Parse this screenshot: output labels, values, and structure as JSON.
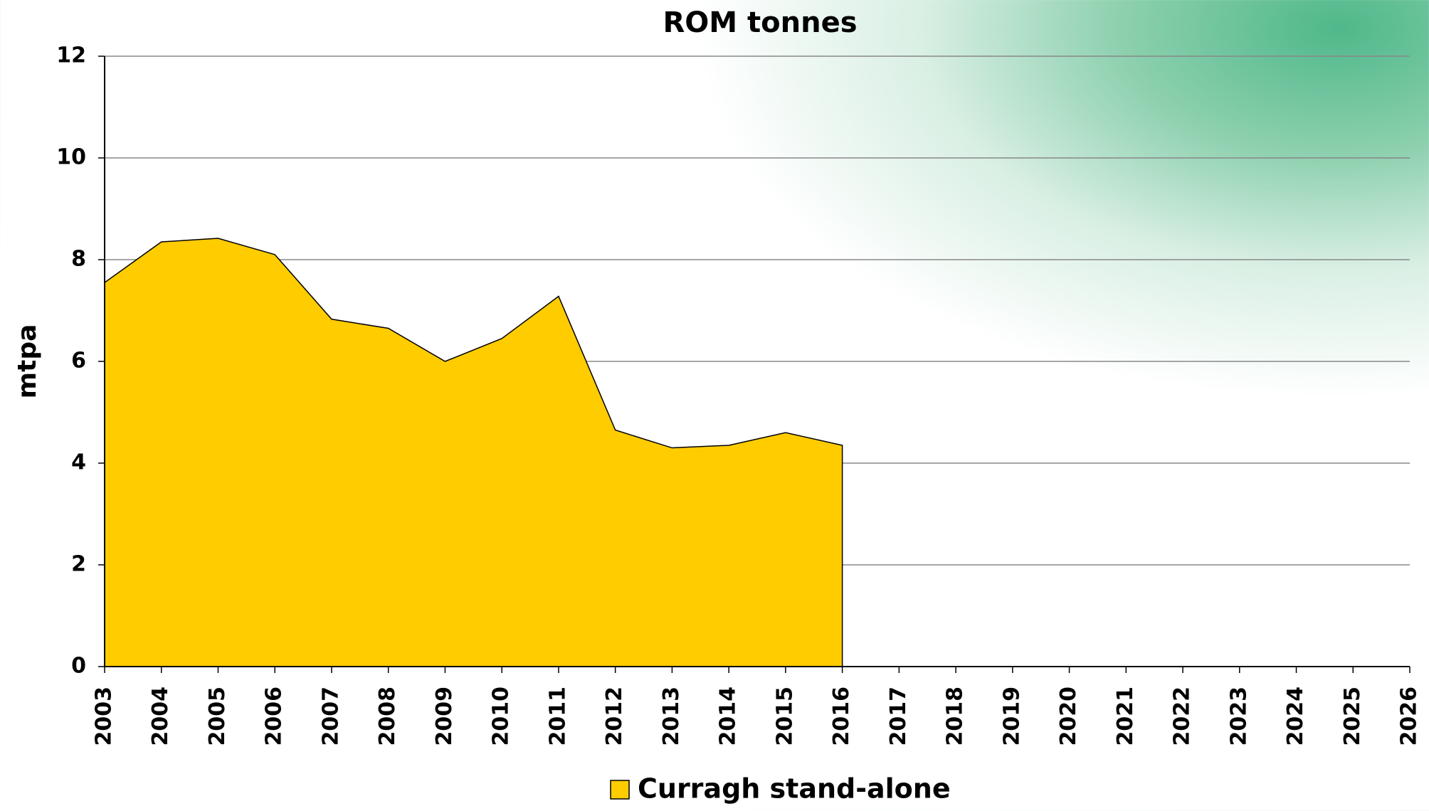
{
  "chart_data": {
    "type": "area",
    "title": "ROM tonnes",
    "y_label": "mtpa",
    "x": [
      2003,
      2004,
      2005,
      2006,
      2007,
      2008,
      2009,
      2010,
      2011,
      2012,
      2013,
      2014,
      2015,
      2016,
      2017,
      2018,
      2019,
      2020,
      2021,
      2022,
      2023,
      2024,
      2025,
      2026
    ],
    "xlim": [
      2003,
      2026
    ],
    "xticks": [
      2003,
      2004,
      2005,
      2006,
      2007,
      2008,
      2009,
      2010,
      2011,
      2012,
      2013,
      2014,
      2015,
      2016,
      2017,
      2018,
      2019,
      2020,
      2021,
      2022,
      2023,
      2024,
      2025,
      2026
    ],
    "ylim": [
      0,
      12
    ],
    "yticks": [
      0,
      2,
      4,
      6,
      8,
      10,
      12
    ],
    "grid": true,
    "series": [
      {
        "name": "Curragh stand-alone",
        "color": "#ffcc00",
        "values": [
          7.55,
          8.35,
          8.42,
          8.1,
          6.83,
          6.65,
          6.0,
          6.45,
          7.28,
          4.65,
          4.3,
          4.35,
          4.6,
          4.35,
          null,
          null,
          null,
          null,
          null,
          null,
          null,
          null,
          null,
          null
        ]
      }
    ],
    "legend": "bottom"
  }
}
